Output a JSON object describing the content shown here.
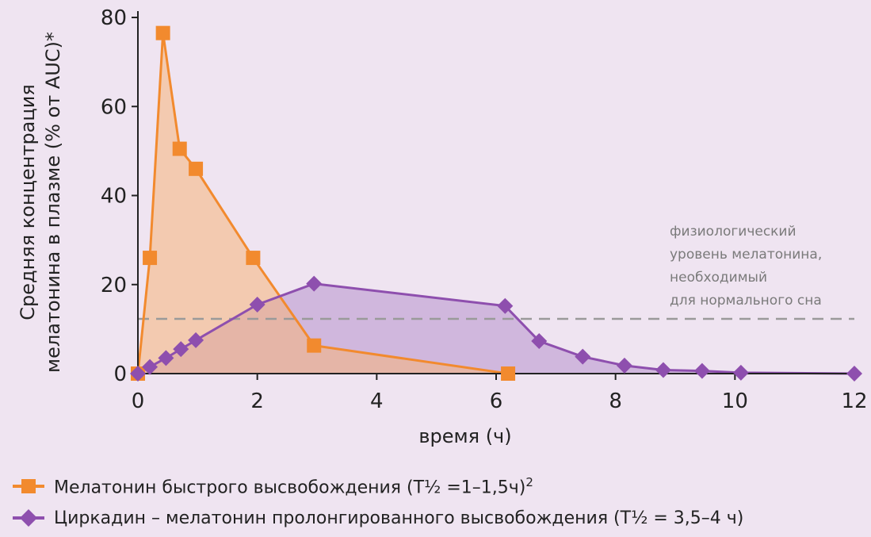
{
  "chart_data": {
    "type": "line",
    "xlabel": "время (ч)",
    "ylabel_line1": "Средняя концентрация",
    "ylabel_line2": "мелатонина в плазме (% от AUC)*",
    "xlim": [
      0,
      12
    ],
    "ylim": [
      0,
      80
    ],
    "xticks": [
      "0",
      "2",
      "4",
      "6",
      "8",
      "10",
      "12"
    ],
    "yticks": [
      "0",
      "20",
      "40",
      "60",
      "80"
    ],
    "threshold": {
      "y": 12.3,
      "label": [
        "физиологический",
        "уровень мелатонина,",
        "необходимый",
        "для нормального сна"
      ]
    },
    "series": [
      {
        "name": "Мелатонин быстрого высвобождения (T½ =1–1,5ч)",
        "superscript": "2",
        "color": "#f28a2e",
        "fill": "#f6b47a",
        "marker": "square",
        "x": [
          0,
          0.2,
          0.42,
          0.7,
          0.97,
          1.93,
          2.95,
          6.2
        ],
        "y": [
          0,
          26,
          76.5,
          50.5,
          46,
          26,
          6.3,
          0
        ]
      },
      {
        "name": "Циркадин – мелатонин пролонгированного высвобождения (T½  = 3,5–4 ч)",
        "color": "#8e4fae",
        "fill": "#b691cc",
        "marker": "diamond",
        "x": [
          0,
          0.2,
          0.47,
          0.72,
          0.97,
          2.0,
          2.95,
          6.15,
          6.72,
          7.45,
          8.15,
          8.8,
          9.45,
          10.1,
          12
        ],
        "y": [
          0,
          1.5,
          3.5,
          5.5,
          7.5,
          15.5,
          20.2,
          15.2,
          7.3,
          3.8,
          1.8,
          0.8,
          0.6,
          0.2,
          0
        ]
      }
    ]
  }
}
